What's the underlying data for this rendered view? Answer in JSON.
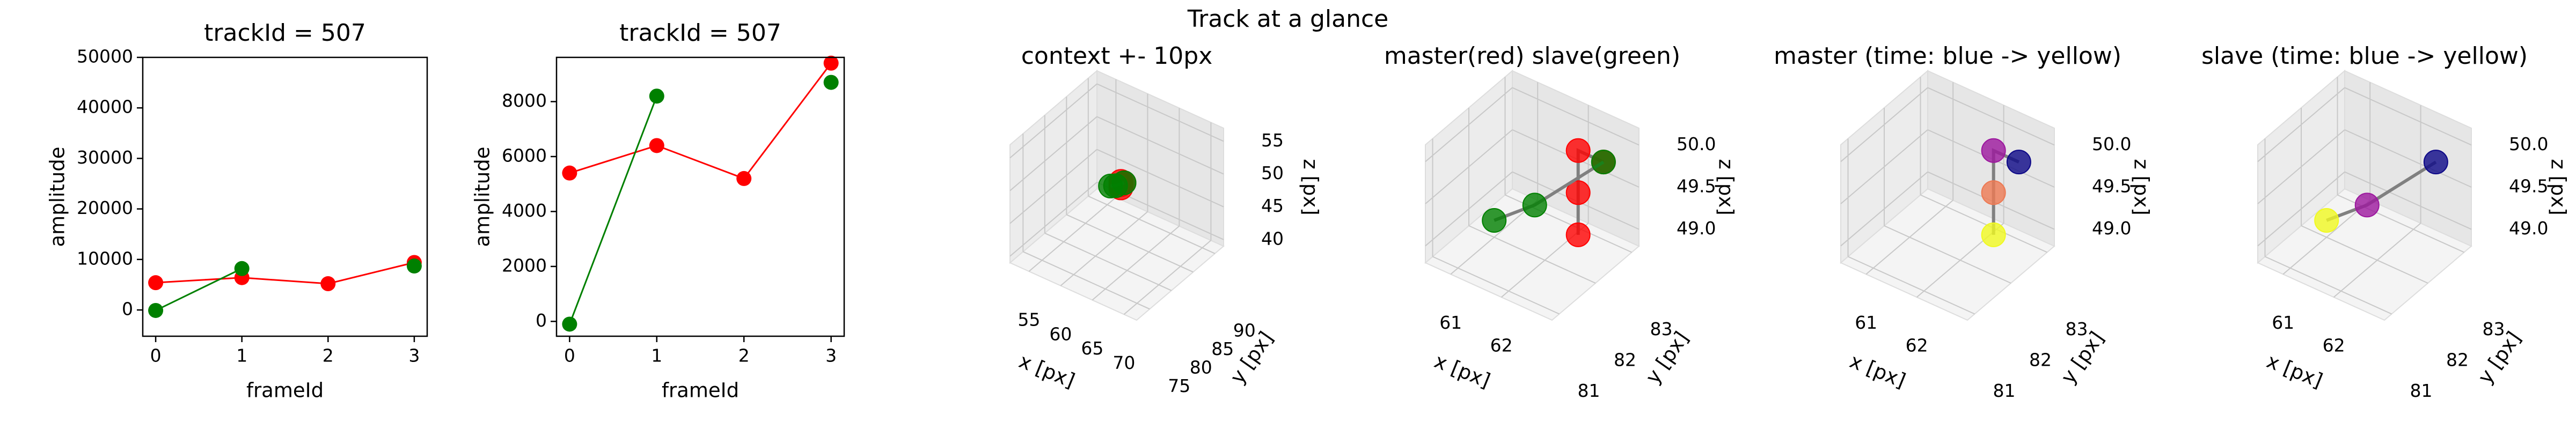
{
  "title": "Track at a glance",
  "chart_data": [
    {
      "type": "line",
      "title": "trackId = 507",
      "xlabel": "frameId",
      "ylabel": "amplitude",
      "x": [
        0,
        1,
        2,
        3
      ],
      "series": [
        {
          "color": "#ff0000",
          "values": [
            5400,
            6400,
            5200,
            9400
          ]
        },
        {
          "color": "#008000",
          "values": [
            -100,
            8200,
            null,
            8700
          ]
        }
      ],
      "xlim": [
        -0.15,
        3.15
      ],
      "xticks": [
        0,
        1,
        2,
        3
      ],
      "ylim": [
        -5200,
        50000
      ],
      "yticks": [
        0,
        10000,
        20000,
        30000,
        40000,
        50000
      ]
    },
    {
      "type": "line",
      "title": "trackId = 507",
      "xlabel": "frameId",
      "ylabel": "amplitude",
      "x": [
        0,
        1,
        2,
        3
      ],
      "series": [
        {
          "color": "#ff0000",
          "values": [
            5400,
            6400,
            5200,
            9400
          ]
        },
        {
          "color": "#008000",
          "values": [
            -100,
            8200,
            null,
            8700
          ]
        }
      ],
      "xlim": [
        -0.15,
        3.15
      ],
      "xticks": [
        0,
        1,
        2,
        3
      ],
      "ylim": [
        -540,
        9610
      ],
      "yticks": [
        0,
        2000,
        4000,
        6000,
        8000
      ]
    },
    {
      "type": "scatter3d",
      "title": "context +- 10px",
      "xlabel": "x [px]",
      "ylabel": "y [px]",
      "zlabel": "z [px]",
      "xlim": [
        52,
        72
      ],
      "xticks": [
        55,
        60,
        65,
        70
      ],
      "ylim": [
        72,
        92
      ],
      "yticks": [
        75,
        80,
        85,
        90
      ],
      "zlim": [
        39,
        57
      ],
      "zticks": [
        40,
        45,
        50,
        55
      ],
      "line_color": "#808080",
      "series": [
        {
          "color": "#ff0000",
          "x": [
            62.8,
            62.3,
            62.3,
            62.3
          ],
          "y": [
            82.5,
            82.5,
            82.5,
            82.5
          ],
          "z": [
            50.0,
            50.0,
            49.5,
            49.0
          ]
        },
        {
          "color": "#008000",
          "x": [
            62.8,
            61.8,
            61.0
          ],
          "y": [
            82.5,
            82.0,
            82.0
          ],
          "z": [
            50.0,
            49.4,
            49.0
          ]
        }
      ]
    },
    {
      "type": "scatter3d",
      "title": "master(red) slave(green)",
      "xlabel": "x [px]",
      "ylabel": "y [px]",
      "zlabel": "z [px]",
      "xlim": [
        60.5,
        63
      ],
      "xticks": [
        61,
        62
      ],
      "ylim": [
        80.8,
        83.2
      ],
      "yticks": [
        81,
        82,
        83
      ],
      "zlim": [
        48.8,
        50.2
      ],
      "zticks": [
        {
          "value": 49,
          "label": "49.0"
        },
        49.5,
        {
          "value": 50,
          "label": "50.0"
        }
      ],
      "line_color": "#808080",
      "series": [
        {
          "color": "#ff0000",
          "x": [
            62.8,
            62.3,
            62.3,
            62.3
          ],
          "y": [
            82.5,
            82.5,
            82.5,
            82.5
          ],
          "z": [
            50.0,
            50.0,
            49.5,
            49.0
          ]
        },
        {
          "color": "#008000",
          "x": [
            62.8,
            61.8,
            61.0
          ],
          "y": [
            82.5,
            82.0,
            82.0
          ],
          "z": [
            50.0,
            49.4,
            49.0
          ]
        }
      ]
    },
    {
      "type": "scatter3d",
      "title": "master (time: blue -> yellow)",
      "xlabel": "x [px]",
      "ylabel": "y [px]",
      "zlabel": "z [px]",
      "xlim": [
        60.5,
        63
      ],
      "xticks": [
        61,
        62
      ],
      "ylim": [
        80.8,
        83.2
      ],
      "yticks": [
        81,
        82,
        83
      ],
      "zlim": [
        48.8,
        50.2
      ],
      "zticks": [
        {
          "value": 49,
          "label": "49.0"
        },
        49.5,
        {
          "value": 50,
          "label": "50.0"
        }
      ],
      "line_color": "#808080",
      "series": [
        {
          "colors": [
            "#0d0887",
            "#9c179e",
            "#ed7953",
            "#f0f921"
          ],
          "x": [
            62.8,
            62.3,
            62.3,
            62.3
          ],
          "y": [
            82.5,
            82.5,
            82.5,
            82.5
          ],
          "z": [
            50.0,
            50.0,
            49.5,
            49.0
          ]
        }
      ]
    },
    {
      "type": "scatter3d",
      "title": "slave (time: blue -> yellow)",
      "xlabel": "x [px]",
      "ylabel": "y [px]",
      "zlabel": "z [px]",
      "xlim": [
        60.5,
        63
      ],
      "xticks": [
        61,
        62
      ],
      "ylim": [
        80.8,
        83.2
      ],
      "yticks": [
        81,
        82,
        83
      ],
      "zlim": [
        48.8,
        50.2
      ],
      "zticks": [
        {
          "value": 49,
          "label": "49.0"
        },
        49.5,
        {
          "value": 50,
          "label": "50.0"
        }
      ],
      "line_color": "#808080",
      "series": [
        {
          "colors": [
            "#0d0887",
            "#9c179e",
            "#f0f921"
          ],
          "x": [
            62.8,
            61.8,
            61.0
          ],
          "y": [
            82.5,
            82.0,
            82.0
          ],
          "z": [
            50.0,
            49.4,
            49.0
          ]
        }
      ]
    }
  ]
}
